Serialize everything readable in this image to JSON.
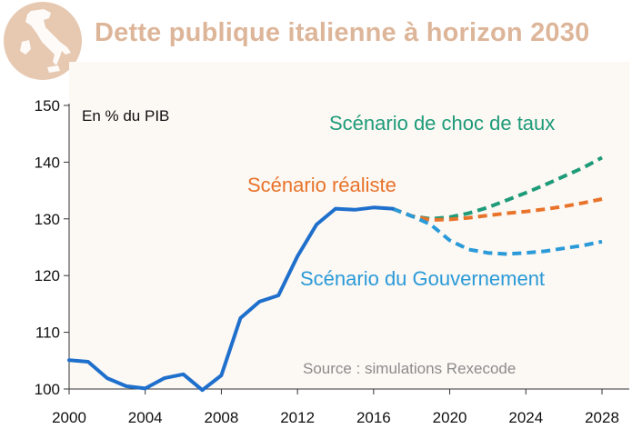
{
  "chart_data": {
    "type": "line",
    "title": "Dette publique italienne à horizon 2030",
    "ylabel": "En % du PIB",
    "source": "Source : simulations Rexecode",
    "xlim": [
      2000,
      2028
    ],
    "ylim": [
      100,
      150
    ],
    "x_ticks": [
      2000,
      2004,
      2008,
      2012,
      2016,
      2020,
      2024,
      2028
    ],
    "y_ticks": [
      100,
      110,
      120,
      130,
      140,
      150
    ],
    "grid": false,
    "series": [
      {
        "name": "",
        "color": "#1f6fcc",
        "style": "solid",
        "x": [
          2000,
          2001,
          2002,
          2003,
          2004,
          2005,
          2006,
          2007,
          2008,
          2009,
          2010,
          2011,
          2012,
          2013,
          2014,
          2015,
          2016,
          2017
        ],
        "y": [
          105.1,
          104.8,
          101.9,
          100.5,
          100.1,
          101.9,
          102.6,
          99.8,
          102.4,
          112.5,
          115.4,
          116.5,
          123.4,
          129.0,
          131.8,
          131.6,
          132.0,
          131.8
        ]
      },
      {
        "name": "Scénario de choc de taux",
        "color": "#1e9b79",
        "style": "dashed",
        "x": [
          2017,
          2018,
          2019,
          2020,
          2021,
          2022,
          2023,
          2024,
          2025,
          2026,
          2027,
          2028
        ],
        "y": [
          131.8,
          130.5,
          130.0,
          130.3,
          131.0,
          132.0,
          133.3,
          134.6,
          136.0,
          137.5,
          139.0,
          140.8
        ]
      },
      {
        "name": "Scénario réaliste",
        "color": "#e8732a",
        "style": "dashed",
        "x": [
          2017,
          2018,
          2019,
          2020,
          2021,
          2022,
          2023,
          2024,
          2025,
          2026,
          2027,
          2028
        ],
        "y": [
          131.8,
          130.5,
          129.8,
          129.9,
          130.2,
          130.6,
          131.0,
          131.3,
          131.7,
          132.2,
          132.8,
          133.5
        ]
      },
      {
        "name": "Scénario du Gouvernement",
        "color": "#2a9ad8",
        "style": "dashed",
        "x": [
          2017,
          2018,
          2019,
          2020,
          2021,
          2022,
          2023,
          2024,
          2025,
          2026,
          2027,
          2028
        ],
        "y": [
          131.8,
          130.5,
          129.0,
          126.2,
          124.6,
          124.0,
          123.8,
          124.0,
          124.3,
          124.8,
          125.3,
          126.0
        ]
      }
    ]
  },
  "colors": {
    "title": "#ddb69a",
    "logo_bg": "#e7c9b2",
    "plot_bg": "#fcf8f4"
  },
  "icons": {
    "logo": "italy-map-icon"
  }
}
